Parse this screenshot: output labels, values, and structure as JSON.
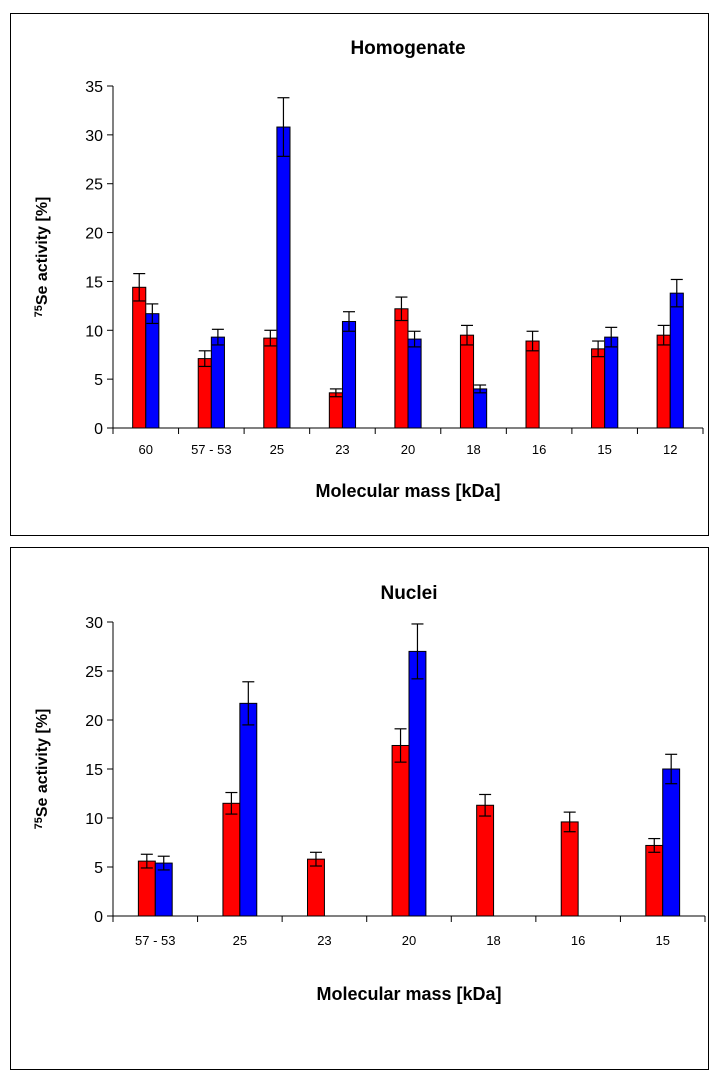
{
  "chart_data": [
    {
      "type": "bar",
      "title": "Homogenate",
      "xlabel": "Molecular  mass [kDa]",
      "ylabel_sup": "75",
      "ylabel": "Se activity [%]",
      "categories": [
        "60",
        "57 - 53",
        "25",
        "23",
        "20",
        "18",
        "16",
        "15",
        "12"
      ],
      "ylim": [
        0,
        35
      ],
      "yticks": [
        0,
        5,
        10,
        15,
        20,
        25,
        30,
        35
      ],
      "series": [
        {
          "color": "#ff0000",
          "values": [
            14.4,
            7.1,
            9.2,
            3.6,
            12.2,
            9.5,
            8.9,
            8.1,
            9.5
          ],
          "errors": [
            1.4,
            0.8,
            0.8,
            0.4,
            1.2,
            1.0,
            1.0,
            0.8,
            1.0
          ]
        },
        {
          "color": "#0000ff",
          "values": [
            11.7,
            9.3,
            30.8,
            10.9,
            9.1,
            4.0,
            null,
            9.3,
            13.8
          ],
          "errors": [
            1.0,
            0.8,
            3.0,
            1.0,
            0.8,
            0.4,
            null,
            1.0,
            1.4
          ]
        }
      ]
    },
    {
      "type": "bar",
      "title": "Nuclei",
      "xlabel": "Molecular  mass [kDa]",
      "ylabel_sup": "75",
      "ylabel": "Se activity [%]",
      "categories": [
        "57 - 53",
        "25",
        "23",
        "20",
        "18",
        "16",
        "15"
      ],
      "ylim": [
        0,
        30
      ],
      "yticks": [
        0,
        5,
        10,
        15,
        20,
        25,
        30
      ],
      "series": [
        {
          "color": "#ff0000",
          "values": [
            5.6,
            11.5,
            5.8,
            17.4,
            11.3,
            9.6,
            7.2
          ],
          "errors": [
            0.7,
            1.1,
            0.7,
            1.7,
            1.1,
            1.0,
            0.7
          ]
        },
        {
          "color": "#0000ff",
          "values": [
            5.4,
            21.7,
            null,
            27.0,
            null,
            null,
            15.0
          ],
          "errors": [
            0.7,
            2.2,
            null,
            2.8,
            null,
            null,
            1.5
          ]
        }
      ]
    }
  ]
}
